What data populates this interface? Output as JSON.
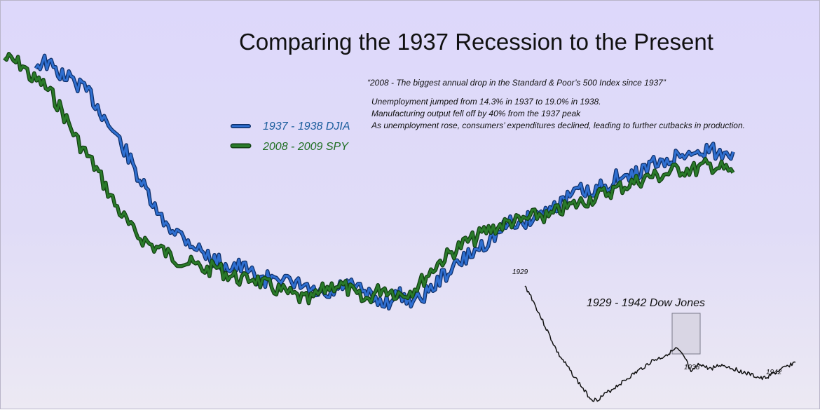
{
  "colors": {
    "djia": "#2f6fd0",
    "spy": "#2a7a2a",
    "dow": "#111111"
  },
  "chart_data": [
    {
      "type": "line",
      "title": "Comparing the 1937 Recession to the Present",
      "xlabel": "",
      "ylabel": "",
      "grid": false,
      "legend_placement": "left",
      "series": [
        {
          "name": "1937 - 1938 DJIA",
          "values": [
            92,
            93,
            91,
            89,
            88,
            86,
            84,
            80,
            76,
            72,
            68,
            63,
            58,
            53,
            48,
            46,
            44,
            42,
            40,
            38,
            36,
            35,
            34,
            34,
            33,
            31,
            30,
            32,
            31,
            28,
            29,
            27,
            26,
            25,
            27,
            29,
            28,
            27,
            25,
            24,
            24,
            26,
            25,
            24,
            26,
            28,
            31,
            33,
            35,
            37,
            39,
            41,
            43,
            45,
            47,
            46,
            48,
            49,
            50,
            52,
            53,
            55,
            56,
            54,
            57,
            58,
            60,
            59,
            61,
            62,
            64,
            63,
            65,
            66,
            67,
            66,
            68,
            67,
            66,
            67
          ]
        },
        {
          "name": "2008 - 2009 SPY",
          "values": [
            94,
            93,
            92,
            88,
            87,
            84,
            80,
            75,
            70,
            66,
            62,
            57,
            52,
            48,
            44,
            42,
            40,
            39,
            37,
            36,
            35,
            34,
            33,
            34,
            32,
            31,
            30,
            31,
            29,
            28,
            27,
            26,
            25,
            24,
            26,
            28,
            29,
            28,
            26,
            24,
            26,
            28,
            27,
            26,
            27,
            29,
            32,
            35,
            37,
            39,
            41,
            42,
            44,
            45,
            46,
            47,
            47,
            48,
            49,
            48,
            50,
            51,
            52,
            53,
            54,
            55,
            56,
            57,
            58,
            59,
            60,
            60,
            61,
            62,
            62,
            62,
            63,
            63,
            62,
            61
          ]
        }
      ]
    },
    {
      "type": "line",
      "title": "1929 - 1942 Dow Jones",
      "grid": false,
      "tick_labels": [
        "1929",
        "1938",
        "1942"
      ],
      "series": [
        {
          "name": "",
          "values": [
            381,
            360,
            330,
            300,
            270,
            240,
            210,
            180,
            160,
            140,
            120,
            100,
            80,
            60,
            45,
            41,
            50,
            60,
            70,
            80,
            90,
            100,
            110,
            120,
            130,
            140,
            150,
            160,
            165,
            170,
            180,
            187,
            195,
            178,
            160,
            120,
            140,
            150,
            140,
            135,
            140,
            146,
            145,
            140,
            135,
            130,
            125,
            120,
            115,
            110,
            105,
            110,
            118,
            125,
            132,
            140,
            148,
            155
          ]
        }
      ],
      "highlight_range": [
        "1937",
        "1938"
      ]
    }
  ],
  "header": {
    "title": "Comparing the 1937 Recession to the Present",
    "quote": "“2008 - The biggest annual drop in the Standard & Poor’s 500 Index since 1937”",
    "facts": [
      "Unemployment jumped from 14.3% in 1937 to 19.0% in 1938.",
      "Manufacturing output fell off by 40% from the 1937 peak",
      "As unemployment rose, consumers’ expenditures declined, leading to further cutbacks in production."
    ]
  },
  "legend": {
    "djia": "1937 - 1938 DJIA",
    "spy": "2008 - 2009 SPY"
  },
  "inset": {
    "title": "1929 - 1942 Dow Jones",
    "labels": [
      "1929",
      "1938",
      "1942"
    ]
  }
}
